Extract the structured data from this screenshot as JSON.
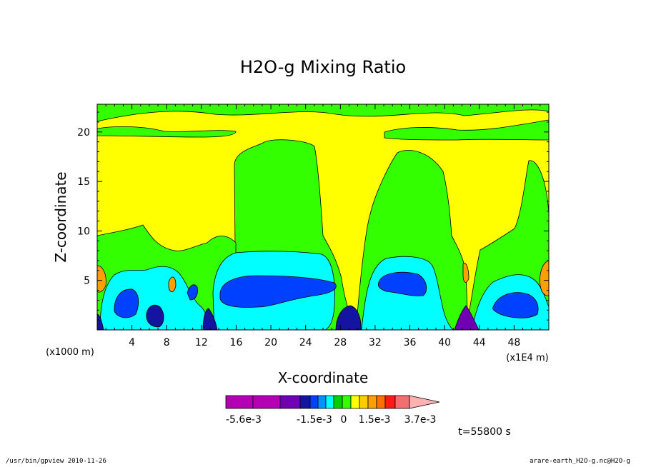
{
  "chart_data": {
    "type": "heatmap",
    "title": "H2O-g Mixing Ratio",
    "xlabel": "X-coordinate",
    "ylabel": "Z-coordinate",
    "x_unit_left": "(x1000 m)",
    "x_unit_right": "(x1E4 m)",
    "xlim": [
      0,
      52
    ],
    "ylim": [
      0,
      22.8
    ],
    "xticks": [
      4,
      8,
      12,
      16,
      20,
      24,
      28,
      32,
      36,
      40,
      44,
      48
    ],
    "xtick_labels": [
      "4",
      "8",
      "12",
      "16",
      "20",
      "24",
      "28",
      "32",
      "36",
      "40",
      "44",
      "48"
    ],
    "yticks": [
      5,
      10,
      15,
      20
    ],
    "ytick_labels": [
      "5",
      "10",
      "15",
      "20"
    ],
    "colorbar": {
      "colors": [
        "#b300b3",
        "#b300b3",
        "#7000b3",
        "#1414a0",
        "#0040ff",
        "#0090ff",
        "#00ffff",
        "#00d000",
        "#33ff00",
        "#ffff00",
        "#ffcc00",
        "#ffa000",
        "#ff7000",
        "#ff1a1a",
        "#f07070",
        "#ffb0b0"
      ],
      "labels": [
        "-5.6e-3",
        "-1.5e-3",
        "0",
        "1.5e-3",
        "3.7e-3"
      ]
    },
    "regions": [
      {
        "level": "yellow",
        "color": "#ffff00",
        "description": "background"
      },
      {
        "level": "green",
        "color": "#33ff00"
      },
      {
        "level": "cyan",
        "color": "#00ffff"
      },
      {
        "level": "blue",
        "color": "#0040ff"
      },
      {
        "level": "navy",
        "color": "#1414a0"
      },
      {
        "level": "orange",
        "color": "#ffa000"
      },
      {
        "level": "purple",
        "color": "#7000b3"
      }
    ]
  },
  "time_label": "t=55800 s",
  "footer": {
    "left": "/usr/bin/gpview  2010-11-26",
    "right": "arare-earth_H2O-g.nc@H2O-g"
  }
}
